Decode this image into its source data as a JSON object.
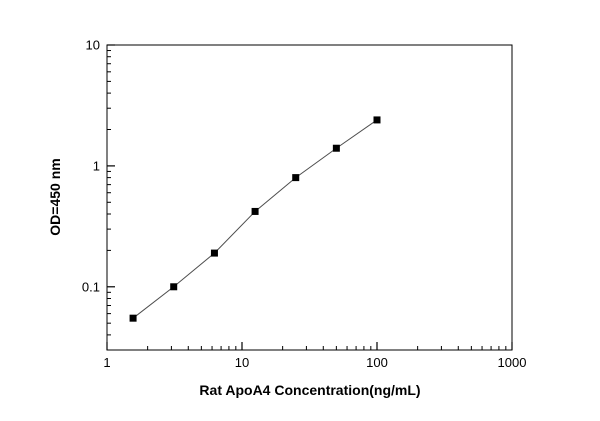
{
  "chart_data": {
    "type": "line",
    "title": "",
    "xlabel": "Rat ApoA4 Concentration(ng/mL)",
    "ylabel": "OD=450 nm",
    "xscale": "log",
    "yscale": "log",
    "xlim": [
      1,
      1000
    ],
    "ylim": [
      0.03,
      10
    ],
    "x": [
      1.56,
      3.12,
      6.25,
      12.5,
      25,
      50,
      100
    ],
    "y": [
      0.055,
      0.1,
      0.19,
      0.42,
      0.8,
      1.4,
      2.4
    ],
    "x_ticks": {
      "values": [
        1,
        10,
        100,
        1000
      ],
      "labels": [
        "1",
        "10",
        "100",
        "1000"
      ]
    },
    "y_ticks": {
      "values": [
        0.1,
        1,
        10
      ],
      "labels": [
        "0.1",
        "1",
        "10"
      ]
    },
    "grid": false,
    "legend": null,
    "marker": "square",
    "marker_color": "#000000",
    "line_color": "#4d4d4d",
    "axis_color": "#000000",
    "background": "#ffffff"
  }
}
